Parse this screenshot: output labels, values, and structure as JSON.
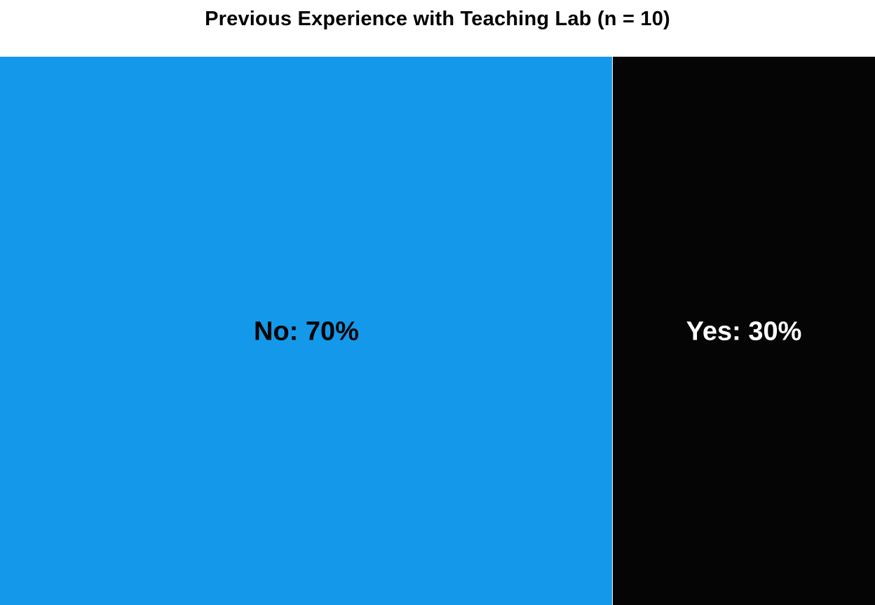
{
  "chart_data": {
    "type": "treemap",
    "title": "Previous Experience with Teaching Lab (n = 10)",
    "n": 10,
    "categories": [
      "No",
      "Yes"
    ],
    "values": [
      70,
      30
    ],
    "labels": [
      "No: 70%",
      "Yes: 30%"
    ],
    "colors": [
      "#1499ea",
      "#050505"
    ],
    "label_colors": [
      "#000000",
      "#ffffff"
    ],
    "unit": "%"
  }
}
